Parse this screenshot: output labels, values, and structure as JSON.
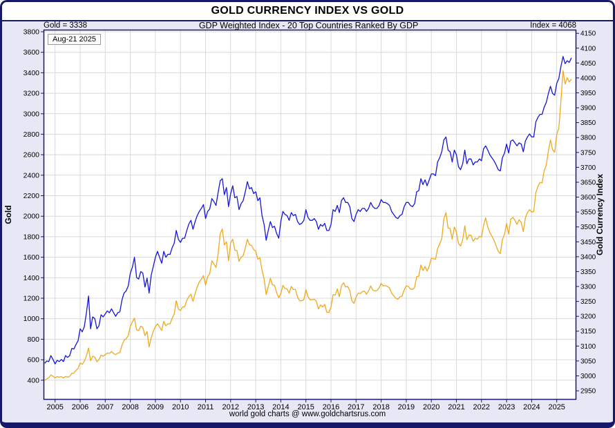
{
  "header": {
    "title": "GOLD CURRENCY INDEX VS GOLD"
  },
  "subheader": {
    "left": "Gold = 3338",
    "center": "GDP Weighted Index - 20 Top Countries Ranked By GDP",
    "right": "Index = 4068"
  },
  "annotation": {
    "date": "Aug-21  2025"
  },
  "footer": {
    "text": "world gold charts @ www.goldchartsrus.com"
  },
  "axes": {
    "left_title": "Gold",
    "right_title": "Gold Currency Index"
  },
  "colors": {
    "gold_line": "#f0a81c",
    "index_line": "#1414dd",
    "grid": "#d8d8d8",
    "frame": "#181868",
    "panel": "#e7e7f6",
    "plot_bg": "#ffffff"
  },
  "chart_data": {
    "type": "line",
    "title": "GOLD CURRENCY INDEX VS GOLD",
    "subtitle": "GDP Weighted Index - 20 Top Countries Ranked By GDP",
    "as_of": "Aug-21 2025",
    "latest": {
      "gold": 3338,
      "index": 4068
    },
    "x_unit": "year",
    "xlim": [
      2004.54,
      2025.78
    ],
    "x_ticks": [
      2005,
      2006,
      2007,
      2008,
      2009,
      2010,
      2011,
      2012,
      2013,
      2014,
      2015,
      2016,
      2017,
      2018,
      2019,
      2020,
      2021,
      2022,
      2023,
      2024,
      2025
    ],
    "x_start": 2004.5833,
    "x_step": 0.0833333,
    "left_axis": {
      "label": "Gold",
      "min": 210,
      "max": 3820,
      "tick_min": 400,
      "tick_max": 3800,
      "tick_step": 200
    },
    "right_axis": {
      "label": "Gold Currency Index",
      "min": 2920,
      "max": 4162,
      "tick_min": 2950,
      "tick_max": 4150,
      "tick_step": 50
    },
    "grid": true,
    "legend": "none",
    "series": [
      {
        "name": "Gold (USD, left axis)",
        "axis": "left",
        "color": "#f0a81c",
        "data_name": "gold-series-line",
        "values": [
          400,
          412,
          425,
          452,
          438,
          422,
          435,
          430,
          435,
          420,
          437,
          429,
          437,
          468,
          470,
          495,
          515,
          568,
          555,
          585,
          640,
          715,
          590,
          635,
          625,
          580,
          600,
          645,
          635,
          650,
          665,
          662,
          680,
          660,
          650,
          665,
          670,
          740,
          790,
          805,
          835,
          925,
          970,
          1005,
          890,
          885,
          928,
          915,
          835,
          875,
          725,
          815,
          878,
          925,
          950,
          920,
          885,
          975,
          930,
          950,
          950,
          1005,
          1045,
          1175,
          1095,
          1080,
          1115,
          1115,
          1180,
          1215,
          1240,
          1170,
          1248,
          1310,
          1360,
          1385,
          1420,
          1330,
          1410,
          1440,
          1565,
          1535,
          1500,
          1630,
          1830,
          1875,
          1720,
          1750,
          1565,
          1740,
          1775,
          1670,
          1665,
          1560,
          1600,
          1615,
          1690,
          1775,
          1720,
          1715,
          1675,
          1660,
          1580,
          1595,
          1470,
          1390,
          1235,
          1310,
          1395,
          1330,
          1325,
          1255,
          1205,
          1245,
          1325,
          1295,
          1290,
          1250,
          1315,
          1285,
          1285,
          1210,
          1175,
          1175,
          1185,
          1285,
          1215,
          1185,
          1185,
          1190,
          1170,
          1095,
          1135,
          1115,
          1140,
          1065,
          1060,
          1115,
          1235,
          1230,
          1290,
          1215,
          1320,
          1350,
          1310,
          1315,
          1275,
          1175,
          1150,
          1210,
          1250,
          1245,
          1265,
          1270,
          1240,
          1270,
          1320,
          1280,
          1270,
          1275,
          1300,
          1345,
          1320,
          1325,
          1315,
          1300,
          1250,
          1225,
          1200,
          1190,
          1215,
          1220,
          1280,
          1320,
          1315,
          1290,
          1285,
          1305,
          1410,
          1415,
          1525,
          1470,
          1510,
          1465,
          1515,
          1590,
          1585,
          1580,
          1685,
          1730,
          1780,
          1975,
          2035,
          1885,
          1880,
          1775,
          1895,
          1845,
          1735,
          1710,
          1770,
          1905,
          1770,
          1815,
          1815,
          1755,
          1785,
          1775,
          1805,
          1795,
          1910,
          1985,
          1895,
          1840,
          1805,
          1765,
          1710,
          1660,
          1635,
          1770,
          1825,
          1930,
          1825,
          1970,
          1990,
          1960,
          1920,
          1965,
          1940,
          1850,
          1985,
          2035,
          2065,
          2040,
          2045,
          2230,
          2290,
          2330,
          2325,
          2445,
          2500,
          2635,
          2745,
          2650,
          2625,
          2800,
          2860,
          3120,
          3420,
          3290,
          3350,
          3310,
          3338
        ]
      },
      {
        "name": "Gold Currency Index (right axis)",
        "axis": "right",
        "color": "#1414dd",
        "data_name": "index-series-line",
        "values": [
          3042,
          3050,
          3048,
          3068,
          3055,
          3040,
          3052,
          3048,
          3055,
          3048,
          3068,
          3062,
          3068,
          3092,
          3090,
          3105,
          3118,
          3158,
          3148,
          3165,
          3212,
          3268,
          3158,
          3198,
          3192,
          3158,
          3168,
          3205,
          3198,
          3208,
          3218,
          3212,
          3225,
          3212,
          3200,
          3212,
          3215,
          3255,
          3278,
          3285,
          3302,
          3345,
          3365,
          3398,
          3330,
          3325,
          3350,
          3345,
          3298,
          3328,
          3278,
          3338,
          3368,
          3398,
          3418,
          3398,
          3378,
          3418,
          3398,
          3408,
          3408,
          3430,
          3445,
          3488,
          3458,
          3448,
          3462,
          3462,
          3488,
          3510,
          3522,
          3492,
          3518,
          3538,
          3552,
          3562,
          3575,
          3528,
          3552,
          3560,
          3595,
          3585,
          3572,
          3615,
          3655,
          3662,
          3608,
          3632,
          3568,
          3612,
          3638,
          3598,
          3602,
          3558,
          3578,
          3588,
          3618,
          3652,
          3628,
          3632,
          3612,
          3618,
          3588,
          3598,
          3538,
          3508,
          3455,
          3488,
          3518,
          3498,
          3502,
          3478,
          3462,
          3518,
          3552,
          3542,
          3538,
          3522,
          3548,
          3538,
          3542,
          3518,
          3508,
          3512,
          3522,
          3558,
          3532,
          3522,
          3522,
          3528,
          3518,
          3492,
          3508,
          3502,
          3512,
          3488,
          3488,
          3508,
          3558,
          3552,
          3572,
          3548,
          3588,
          3598,
          3582,
          3582,
          3568,
          3528,
          3518,
          3542,
          3558,
          3552,
          3562,
          3562,
          3552,
          3562,
          3582,
          3568,
          3562,
          3562,
          3572,
          3592,
          3582,
          3582,
          3578,
          3572,
          3552,
          3542,
          3532,
          3528,
          3538,
          3542,
          3568,
          3582,
          3582,
          3572,
          3568,
          3578,
          3618,
          3622,
          3662,
          3642,
          3658,
          3638,
          3658,
          3678,
          3678,
          3672,
          3718,
          3732,
          3752,
          3792,
          3802,
          3758,
          3752,
          3718,
          3758,
          3742,
          3702,
          3692,
          3712,
          3758,
          3712,
          3728,
          3728,
          3708,
          3718,
          3718,
          3728,
          3722,
          3762,
          3772,
          3758,
          3742,
          3732,
          3722,
          3708,
          3692,
          3688,
          3732,
          3748,
          3778,
          3748,
          3788,
          3792,
          3782,
          3772,
          3782,
          3778,
          3752,
          3788,
          3802,
          3812,
          3802,
          3802,
          3852,
          3868,
          3878,
          3878,
          3902,
          3918,
          3948,
          3972,
          3948,
          3942,
          3982,
          3998,
          4038,
          4072,
          4048,
          4058,
          4052,
          4068
        ]
      }
    ]
  }
}
